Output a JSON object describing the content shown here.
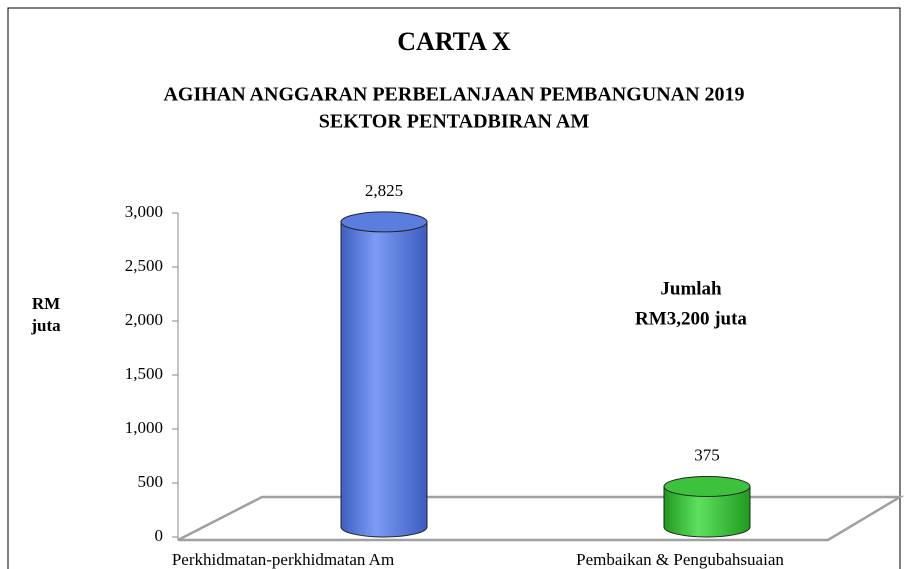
{
  "chart_data": {
    "type": "bar",
    "title": "CARTA X",
    "subtitle": [
      "AGIHAN ANGGARAN PERBELANJAAN PEMBANGUNAN 2019",
      "SEKTOR PENTADBIRAN AM"
    ],
    "ylabel": [
      "RM",
      "juta"
    ],
    "annotation": [
      "Jumlah",
      "RM3,200 juta"
    ],
    "categories": [
      "Perkhidmatan-perkhidmatan Am",
      "Pembaikan & Pengubahsuaian"
    ],
    "values": [
      2825,
      375
    ],
    "value_labels": [
      "2,825",
      "375"
    ],
    "colors": [
      "#5a7ee0",
      "#3cc23c"
    ],
    "ylim": [
      0,
      3000
    ],
    "yticks": [
      0,
      500,
      {
        "value": 1000,
        "label": "1,000"
      },
      {
        "value": 1500,
        "label": "1,500"
      },
      {
        "value": 2000,
        "label": "2,000"
      },
      {
        "value": 2500,
        "label": "2,500"
      },
      {
        "value": 3000,
        "label": "3,000"
      }
    ]
  }
}
